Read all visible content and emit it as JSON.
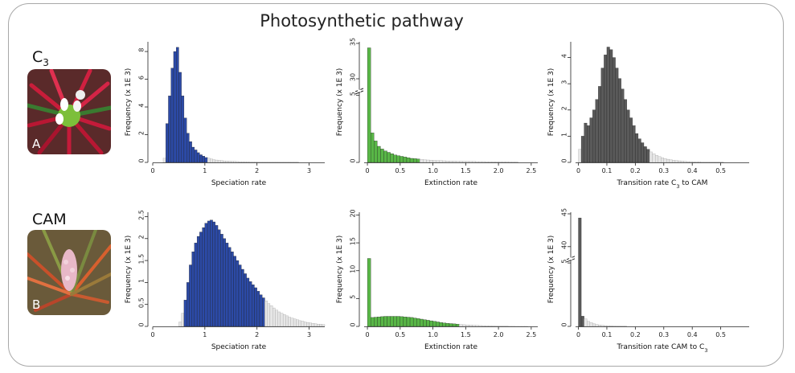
{
  "figure_title": "Photosynthetic pathway",
  "rows": [
    {
      "label": "C",
      "label_sub": "3",
      "photo_letter": "A"
    },
    {
      "label": "CAM",
      "label_sub": "",
      "photo_letter": "B"
    }
  ],
  "colors": {
    "blue": "#2c4aa6",
    "green": "#58b646",
    "gray": "#5a5a5a",
    "tail": "#e6e6e6"
  },
  "chart_data": [
    {
      "type": "bar",
      "id": "c3-speciation",
      "xlabel": "Speciation rate",
      "ylabel": "Frequency (x 1E 3)",
      "xlim": [
        0,
        3.3
      ],
      "ylim": [
        0,
        8.7
      ],
      "xticks": [
        0,
        1,
        2,
        3
      ],
      "yticks": [
        0,
        2,
        4,
        6,
        8
      ],
      "axis_break": false,
      "bin_width": 0.05,
      "bins_start": 0.2,
      "color": "blue",
      "hpd_range": [
        0.25,
        1.0
      ],
      "values": [
        0.3,
        2.8,
        4.8,
        6.8,
        8.0,
        8.3,
        6.5,
        4.8,
        3.2,
        2.1,
        1.5,
        1.1,
        0.9,
        0.7,
        0.55,
        0.45,
        0.35,
        0.3,
        0.25,
        0.2,
        0.17,
        0.15,
        0.13,
        0.11,
        0.1,
        0.09,
        0.08,
        0.07,
        0.06,
        0.05,
        0.05,
        0.04,
        0.04,
        0.03,
        0.03,
        0.03,
        0.02,
        0.02,
        0.02,
        0.02,
        0.02,
        0.02,
        0.02,
        0.01,
        0.01,
        0.01,
        0.01,
        0.01,
        0.01,
        0.01,
        0.01,
        0.01
      ]
    },
    {
      "type": "bar",
      "id": "c3-extinction",
      "xlabel": "Extinction rate",
      "ylabel": "Frequency (x 1E 3)",
      "xlim": [
        -0.05,
        2.6
      ],
      "ylim": [
        0,
        9.0
      ],
      "xticks": [
        0,
        0.5,
        1.0,
        1.5,
        2.0,
        2.5
      ],
      "xtick_labels": [
        "0",
        "0.5",
        "1.0",
        "1.5",
        "2.0",
        "2.5"
      ],
      "yticks": [
        0,
        5
      ],
      "yticks_upper": [
        30,
        35
      ],
      "axis_break": true,
      "first_bar_actual": 33,
      "bin_width": 0.05,
      "bins_start": 0.0,
      "color": "green",
      "hpd_range": [
        0.0,
        0.75
      ],
      "values": [
        33,
        2.2,
        1.6,
        1.2,
        1.0,
        0.85,
        0.75,
        0.65,
        0.55,
        0.5,
        0.45,
        0.4,
        0.35,
        0.3,
        0.28,
        0.25,
        0.22,
        0.2,
        0.18,
        0.16,
        0.15,
        0.14,
        0.13,
        0.12,
        0.11,
        0.1,
        0.1,
        0.09,
        0.09,
        0.08,
        0.08,
        0.07,
        0.07,
        0.06,
        0.06,
        0.06,
        0.05,
        0.05,
        0.05,
        0.04,
        0.04,
        0.04,
        0.04,
        0.03,
        0.03,
        0.03
      ]
    },
    {
      "type": "bar",
      "id": "c3-transition",
      "xlabel": "Transition rate C",
      "xlabel_sub": "3",
      "xlabel_suffix": " to CAM",
      "ylabel": "Frequency (x 1E 3)",
      "xlim": [
        -0.01,
        0.6
      ],
      "ylim": [
        0,
        4.6
      ],
      "xticks": [
        0,
        0.1,
        0.2,
        0.3,
        0.4,
        0.5
      ],
      "xtick_labels": [
        "0",
        "0.1",
        "0.2",
        "0.3",
        "0.4",
        "0.5"
      ],
      "yticks": [
        0,
        1,
        2,
        3,
        4
      ],
      "axis_break": false,
      "bin_width": 0.01,
      "bins_start": 0.0,
      "color": "gray",
      "hpd_range": [
        0.01,
        0.24
      ],
      "values": [
        0.5,
        1.0,
        1.5,
        1.4,
        1.7,
        2.0,
        2.4,
        2.9,
        3.6,
        4.1,
        4.4,
        4.3,
        4.0,
        3.6,
        3.2,
        2.8,
        2.4,
        2.0,
        1.7,
        1.4,
        1.1,
        0.9,
        0.75,
        0.6,
        0.5,
        0.4,
        0.33,
        0.27,
        0.22,
        0.18,
        0.15,
        0.12,
        0.1,
        0.08,
        0.07,
        0.06,
        0.05,
        0.04,
        0.03,
        0.03,
        0.02,
        0.02,
        0.02,
        0.01,
        0.01,
        0.01,
        0.01,
        0.01,
        0.01,
        0.01,
        0.01
      ]
    },
    {
      "type": "bar",
      "id": "cam-speciation",
      "xlabel": "Speciation rate",
      "ylabel": "Frequency (x 1E 3)",
      "xlim": [
        0,
        3.3
      ],
      "ylim": [
        0,
        2.6
      ],
      "xticks": [
        0,
        1,
        2,
        3
      ],
      "yticks": [
        0,
        0.5,
        1,
        1.5,
        2,
        2.5
      ],
      "ytick_labels": [
        "0",
        "0.5",
        "1",
        "1.5",
        "2",
        "2.5"
      ],
      "axis_break": false,
      "bin_width": 0.05,
      "bins_start": 0.5,
      "color": "blue",
      "hpd_range": [
        0.6,
        2.1
      ],
      "values": [
        0.1,
        0.3,
        0.6,
        1.0,
        1.4,
        1.7,
        1.9,
        2.05,
        2.15,
        2.25,
        2.35,
        2.4,
        2.42,
        2.38,
        2.3,
        2.2,
        2.1,
        2.0,
        1.9,
        1.8,
        1.7,
        1.6,
        1.5,
        1.4,
        1.3,
        1.2,
        1.1,
        1.02,
        0.95,
        0.88,
        0.8,
        0.72,
        0.65,
        0.58,
        0.52,
        0.47,
        0.42,
        0.37,
        0.33,
        0.3,
        0.27,
        0.24,
        0.21,
        0.19,
        0.17,
        0.15,
        0.13,
        0.12,
        0.1,
        0.09,
        0.08,
        0.07,
        0.06,
        0.05,
        0.05,
        0.04
      ]
    },
    {
      "type": "bar",
      "id": "cam-extinction",
      "xlabel": "Extinction rate",
      "ylabel": "Frequency (x 1E 3)",
      "xlim": [
        -0.05,
        2.6
      ],
      "ylim": [
        0,
        20.5
      ],
      "xticks": [
        0,
        0.5,
        1.0,
        1.5,
        2.0,
        2.5
      ],
      "xtick_labels": [
        "0",
        "0.5",
        "1.0",
        "1.5",
        "2.0",
        "2.5"
      ],
      "yticks": [
        0,
        5,
        10,
        15,
        20
      ],
      "axis_break": false,
      "bin_width": 0.05,
      "bins_start": 0.0,
      "color": "green",
      "hpd_range": [
        0.0,
        1.4
      ],
      "values": [
        12.2,
        1.6,
        1.65,
        1.7,
        1.75,
        1.8,
        1.8,
        1.8,
        1.8,
        1.8,
        1.75,
        1.7,
        1.65,
        1.6,
        1.5,
        1.4,
        1.3,
        1.2,
        1.1,
        1.0,
        0.9,
        0.8,
        0.7,
        0.6,
        0.55,
        0.5,
        0.45,
        0.4,
        0.35,
        0.3,
        0.27,
        0.24,
        0.21,
        0.18,
        0.15,
        0.13,
        0.11,
        0.09,
        0.08,
        0.06,
        0.05,
        0.04,
        0.03,
        0.02,
        0.02,
        0.01,
        0.01,
        0.01,
        0.01
      ]
    },
    {
      "type": "bar",
      "id": "cam-transition",
      "xlabel": "Transition rate CAM to C",
      "xlabel_sub": "3",
      "xlabel_suffix": "",
      "ylabel": "Frequency (x 1E 3)",
      "xlim": [
        -0.01,
        0.6
      ],
      "ylim": [
        0,
        9.0
      ],
      "xticks": [
        0,
        0.1,
        0.2,
        0.3,
        0.4,
        0.5
      ],
      "xtick_labels": [
        "0",
        "0.1",
        "0.2",
        "0.3",
        "0.4",
        "0.5"
      ],
      "yticks": [
        0,
        5
      ],
      "yticks_upper": [
        40,
        45
      ],
      "axis_break": true,
      "first_bar_actual": 43,
      "bin_width": 0.01,
      "bins_start": 0.0,
      "color": "gray",
      "hpd_range": [
        0.0,
        0.01
      ],
      "values": [
        43,
        0.8,
        0.6,
        0.4,
        0.3,
        0.2,
        0.15,
        0.1,
        0.08,
        0.06,
        0.05,
        0.04,
        0.03,
        0.02,
        0.02,
        0.01,
        0.01
      ]
    }
  ]
}
